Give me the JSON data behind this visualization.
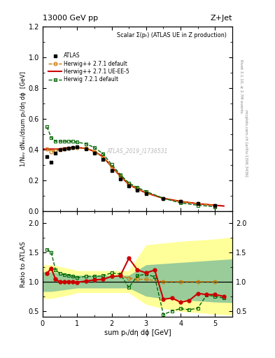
{
  "title_left": "13000 GeV pp",
  "title_right": "Z+Jet",
  "main_title": "Scalar Σ(pₜ) (ATLAS UE in Z production)",
  "right_label1": "Rivet 3.1.10, ≥ 2.7M events",
  "right_label2": "mcplots.cern.ch [arXiv:1306.3436]",
  "xlabel": "sum pₜ/dη dϕ [GeV]",
  "ylabel_main": "1/Nₑᵥ dNₑᵥ/dsum pₜ/dη dϕ  [GeV]",
  "ylabel_ratio": "Ratio to ATLAS",
  "xlim": [
    0,
    5.5
  ],
  "ylim_main": [
    0,
    1.2
  ],
  "ylim_ratio": [
    0.4,
    2.2
  ],
  "watermark": "ATLAS_2019_I1736531",
  "atlas_x": [
    0.125,
    0.25,
    0.375,
    0.5,
    0.625,
    0.75,
    0.875,
    1.0,
    1.25,
    1.5,
    1.75,
    2.0,
    2.25,
    2.5,
    2.75,
    3.0,
    3.5,
    4.0,
    4.5,
    5.0
  ],
  "atlas_y": [
    0.355,
    0.32,
    0.38,
    0.4,
    0.405,
    0.41,
    0.415,
    0.42,
    0.405,
    0.38,
    0.34,
    0.265,
    0.21,
    0.165,
    0.14,
    0.115,
    0.085,
    0.065,
    0.05,
    0.04
  ],
  "hw271_x": [
    0.125,
    0.25,
    0.375,
    0.5,
    0.625,
    0.75,
    0.875,
    1.0,
    1.25,
    1.5,
    1.75,
    2.0,
    2.25,
    2.5,
    2.75,
    3.0,
    3.5,
    4.0,
    4.5,
    5.0
  ],
  "hw271_y": [
    0.405,
    0.39,
    0.395,
    0.4,
    0.405,
    0.41,
    0.415,
    0.415,
    0.41,
    0.39,
    0.355,
    0.29,
    0.23,
    0.175,
    0.145,
    0.12,
    0.085,
    0.065,
    0.05,
    0.04
  ],
  "hw271ue_x": [
    0.0,
    0.25,
    0.5,
    0.75,
    1.0,
    1.25,
    1.5,
    1.75,
    2.0,
    2.25,
    2.5,
    2.75,
    3.0,
    3.5,
    4.0,
    4.5,
    5.0,
    5.25
  ],
  "hw271ue_y": [
    0.405,
    0.405,
    0.405,
    0.415,
    0.415,
    0.41,
    0.39,
    0.355,
    0.29,
    0.23,
    0.175,
    0.145,
    0.12,
    0.085,
    0.065,
    0.05,
    0.04,
    0.035
  ],
  "hw721_x": [
    0.125,
    0.25,
    0.375,
    0.5,
    0.625,
    0.75,
    0.875,
    1.0,
    1.25,
    1.5,
    1.75,
    2.0,
    2.25,
    2.5,
    2.75,
    3.0,
    3.5,
    4.0,
    4.5,
    5.0
  ],
  "hw721_y": [
    0.55,
    0.48,
    0.455,
    0.455,
    0.455,
    0.455,
    0.455,
    0.45,
    0.44,
    0.415,
    0.375,
    0.305,
    0.24,
    0.185,
    0.155,
    0.13,
    0.085,
    0.055,
    0.04,
    0.03
  ],
  "ratio_hw271_x": [
    0.125,
    0.25,
    0.375,
    0.5,
    0.625,
    0.75,
    0.875,
    1.0,
    1.25,
    1.5,
    1.75,
    2.0,
    2.25,
    2.5,
    2.75,
    3.0,
    3.5,
    4.0,
    4.5,
    5.0
  ],
  "ratio_hw271_y": [
    1.14,
    1.22,
    1.04,
    1.0,
    1.0,
    1.0,
    1.0,
    0.99,
    1.01,
    1.03,
    1.04,
    1.09,
    1.1,
    1.06,
    1.04,
    1.04,
    1.0,
    1.0,
    1.0,
    1.0
  ],
  "ratio_hw271ue_x": [
    0.125,
    0.25,
    0.375,
    0.5,
    0.625,
    0.75,
    0.875,
    1.0,
    1.25,
    1.5,
    1.75,
    2.0,
    2.25,
    2.5,
    2.75,
    3.0,
    3.25,
    3.5,
    3.75,
    4.0,
    4.25,
    4.5,
    4.75,
    5.0,
    5.25
  ],
  "ratio_hw271ue_y": [
    1.14,
    1.23,
    1.04,
    1.0,
    1.0,
    1.0,
    1.0,
    0.99,
    1.01,
    1.03,
    1.04,
    1.09,
    1.1,
    1.4,
    1.2,
    1.15,
    1.2,
    0.7,
    0.72,
    0.65,
    0.68,
    0.8,
    0.78,
    0.78,
    0.75
  ],
  "ratio_hw721_x": [
    0.125,
    0.25,
    0.375,
    0.5,
    0.625,
    0.75,
    0.875,
    1.0,
    1.25,
    1.5,
    1.75,
    2.0,
    2.25,
    2.5,
    2.75,
    3.0,
    3.25,
    3.5,
    3.75,
    4.0,
    4.25,
    4.5,
    4.75,
    5.0,
    5.25
  ],
  "ratio_hw721_y": [
    1.55,
    1.5,
    1.2,
    1.14,
    1.12,
    1.11,
    1.09,
    1.07,
    1.09,
    1.09,
    1.1,
    1.15,
    1.13,
    0.9,
    1.1,
    1.13,
    1.08,
    0.44,
    0.5,
    0.54,
    0.52,
    0.55,
    0.77,
    0.75,
    0.72
  ],
  "yellow_band_x": [
    0.0,
    0.25,
    0.5,
    0.75,
    1.0,
    1.5,
    2.0,
    2.5,
    3.0,
    3.5,
    4.0,
    4.5,
    5.0,
    5.5
  ],
  "yellow_band_lo": [
    0.72,
    0.72,
    0.75,
    0.78,
    0.82,
    0.82,
    0.82,
    0.82,
    0.62,
    0.55,
    0.5,
    0.48,
    0.45,
    0.44
  ],
  "yellow_band_hi": [
    1.28,
    1.28,
    1.25,
    1.22,
    1.18,
    1.18,
    1.18,
    1.18,
    1.62,
    1.65,
    1.68,
    1.7,
    1.72,
    1.75
  ],
  "green_band_x": [
    0.0,
    0.25,
    0.5,
    0.75,
    1.0,
    1.5,
    2.0,
    2.5,
    3.0,
    3.5,
    4.0,
    4.5,
    5.0,
    5.5
  ],
  "green_band_lo": [
    0.84,
    0.84,
    0.86,
    0.88,
    0.9,
    0.9,
    0.9,
    0.9,
    0.76,
    0.72,
    0.7,
    0.68,
    0.66,
    0.65
  ],
  "green_band_hi": [
    1.16,
    1.16,
    1.14,
    1.12,
    1.1,
    1.1,
    1.1,
    1.1,
    1.28,
    1.3,
    1.32,
    1.34,
    1.36,
    1.38
  ],
  "color_atlas": "#000000",
  "color_hw271": "#cc7700",
  "color_hw271ue": "#cc0000",
  "color_hw721": "#006600",
  "color_yellow_band": "#ffff99",
  "color_green_band": "#99cc99"
}
